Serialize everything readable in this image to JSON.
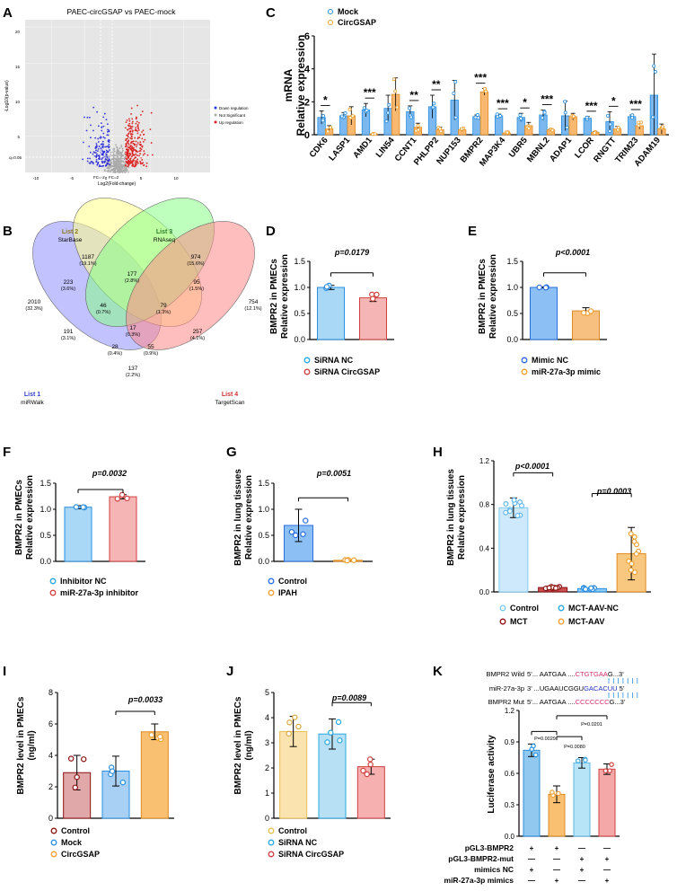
{
  "panels": {
    "A": {
      "letter": "A",
      "title": "PAEC-circGSAP vs PAEC-mock",
      "xlabel": "Log2(Fold-change)",
      "ylabel": "-Log10(p-value)",
      "xticks": [
        "-10",
        "-5",
        "0",
        "5",
        "10"
      ],
      "yticks": [
        "20",
        "15",
        "10",
        "5"
      ],
      "q_label": "q=0.05",
      "fc_left": "FC=-2",
      "fc_right": "FC=2",
      "legend": [
        "Down regulation",
        "Not Significant",
        "Up regulation"
      ],
      "colors": {
        "down": "#3333dd",
        "ns": "#aaaaaa",
        "up": "#dd2222",
        "bg": "#e6e6e6"
      }
    },
    "B": {
      "letter": "B",
      "lists": [
        {
          "name": "List 1",
          "sub": "miRWalk",
          "color": "#2f3fc7"
        },
        {
          "name": "List 2",
          "sub": "StarBase",
          "color": "#8a7a20"
        },
        {
          "name": "List 3",
          "sub": "RNAseq",
          "color": "#2a7a2a"
        },
        {
          "name": "List 4",
          "sub": "TargetScan",
          "color": "#d03030"
        }
      ],
      "fills": {
        "l1": "#9999ff",
        "l2": "#ffff88",
        "l3": "#88ff88",
        "l4": "#ff8888"
      },
      "regions": [
        {
          "n": "1187",
          "p": "(19.1%)"
        },
        {
          "n": "974",
          "p": "(15.6%)"
        },
        {
          "n": "223",
          "p": "(3.6%)"
        },
        {
          "n": "177",
          "p": "(2.8%)"
        },
        {
          "n": "95",
          "p": "(1.5%)"
        },
        {
          "n": "2010",
          "p": "(32.3%)"
        },
        {
          "n": "46",
          "p": "(0.7%)"
        },
        {
          "n": "79",
          "p": "(1.3%)"
        },
        {
          "n": "754",
          "p": "(12.1%)"
        },
        {
          "n": "17",
          "p": "(0.3%)"
        },
        {
          "n": "191",
          "p": "(3.1%)"
        },
        {
          "n": "257",
          "p": "(4.1%)"
        },
        {
          "n": "28",
          "p": "(0.4%)"
        },
        {
          "n": "55",
          "p": "(0.9%)"
        },
        {
          "n": "137",
          "p": "(2.2%)"
        }
      ]
    },
    "C": {
      "letter": "C",
      "ylabel1": "mRNA",
      "ylabel2": "Relative expression",
      "legend": [
        "Mock",
        "CircGSAP"
      ]
    },
    "D": {
      "letter": "D",
      "ylabel1": "BMPR2 in PMECs",
      "ylabel2": "Relative expression",
      "pval": "p=0.0179",
      "legend": [
        "SiRNA NC",
        "SiRNA CircGSAP"
      ]
    },
    "E": {
      "letter": "E",
      "ylabel1": "BMPR2 in PMECs",
      "ylabel2": "Relative expression",
      "pval": "p<0.0001",
      "legend": [
        "Mimic NC",
        "miR-27a-3p mimic"
      ]
    },
    "F": {
      "letter": "F",
      "ylabel1": "BMPR2 in PMECs",
      "ylabel2": "Relative expression",
      "pval": "p=0.0032",
      "legend": [
        "Inhibitor NC",
        "miR-27a-3p inhibitor"
      ]
    },
    "G": {
      "letter": "G",
      "ylabel1": "BMPR2 in lung tissues",
      "ylabel2": "Relative expression",
      "pval": "p=0.0051",
      "legend": [
        "Control",
        "IPAH"
      ]
    },
    "H": {
      "letter": "H",
      "ylabel1": "BMPR2 in lung tissues",
      "ylabel2": "Relative expression",
      "pval1": "p<0.0001",
      "pval2": "p=0.0003",
      "legend": [
        "Control",
        "MCT-AAV-NC",
        "MCT",
        "MCT-AAV"
      ]
    },
    "I": {
      "letter": "I",
      "ylabel1": "BMPR2 level in PMECs",
      "ylabel2": "(ng/ml)",
      "pval": "p=0.0033",
      "legend": [
        "Control",
        "Mock",
        "CircGSAP"
      ]
    },
    "J": {
      "letter": "J",
      "ylabel1": "BMPR2 level in PMECs",
      "ylabel2": "(ng/ml)",
      "pval": "p=0.0089",
      "legend": [
        "Control",
        "SiRNA NC",
        "SiRNA CircGSAP"
      ]
    },
    "K": {
      "letter": "K",
      "seq": [
        {
          "label": "BMPR2 Wild",
          "pre": "5’... AATGAA  ....",
          "hl": "CTGTGAA",
          "post": "G...3’",
          "hlcolor": "#d0306a"
        },
        {
          "label": "miR-27a-3p",
          "pre": "3’ ...UGAAUCGGU",
          "hl": "GACACUU",
          "post": " 5’",
          "hlcolor": "#2030c0"
        },
        {
          "label": "BMPR2 Mut",
          "pre": "5’... AATGAA  ....",
          "hl": "CCCCCCC",
          "post": "G...3’",
          "hlcolor": "#d0306a"
        }
      ],
      "ylabel": "Luciferase activity",
      "pvals": [
        "P=0.0029",
        "P=0.0080",
        "P=0.0201"
      ],
      "rows": [
        {
          "label": "pGL3-BMPR2",
          "marks": [
            "+",
            "+",
            "—",
            "—"
          ]
        },
        {
          "label": "pGL3-BMPR2-mut",
          "marks": [
            "—",
            "—",
            "+",
            "+"
          ]
        },
        {
          "label": "mimics NC",
          "marks": [
            "+",
            "—",
            "+",
            "—"
          ]
        },
        {
          "label": "miR-27a-3p mimics",
          "marks": [
            "—",
            "+",
            "—",
            "+"
          ]
        }
      ]
    }
  },
  "chart_data": [
    {
      "panel": "A",
      "type": "scatter",
      "title": "PAEC-circGSAP vs PAEC-mock",
      "xlabel": "Log2(Fold-change)",
      "ylabel": "-Log10(p-value)",
      "xlim": [
        -14,
        14
      ],
      "ylim": [
        0,
        21
      ],
      "series": [
        {
          "name": "Down regulation"
        },
        {
          "name": "Not Significant"
        },
        {
          "name": "Up regulation"
        }
      ]
    },
    {
      "panel": "C",
      "type": "bar",
      "ylim": [
        0,
        6
      ],
      "yticks": [
        0,
        2,
        4,
        6
      ],
      "categories": [
        "CDK6",
        "LASP1",
        "AMD1",
        "LIN54",
        "CCNT1",
        "PHLPP2",
        "NUP153",
        "BMPR2",
        "MAP3K4",
        "UBR5",
        "MBNL2",
        "ADAP1",
        "LCOR",
        "RNGTT",
        "TRIM23",
        "ADAM19"
      ],
      "series": [
        {
          "name": "Mock",
          "values": [
            1.05,
            1.15,
            1.5,
            1.6,
            1.4,
            1.7,
            2.1,
            1.1,
            1.15,
            1.05,
            1.2,
            1.15,
            1.0,
            0.8,
            1.1,
            2.4
          ],
          "err": [
            0.4,
            0.2,
            0.4,
            0.8,
            0.35,
            0.7,
            1.2,
            0.1,
            0.1,
            0.25,
            0.3,
            0.9,
            0.1,
            0.6,
            0.1,
            2.5
          ]
        },
        {
          "name": "CircGSAP",
          "values": [
            0.35,
            1.15,
            0.05,
            2.45,
            0.45,
            0.3,
            0.3,
            2.6,
            0.1,
            0.55,
            0.3,
            1.1,
            0.15,
            0.35,
            0.55,
            0.35
          ],
          "err": [
            0.2,
            0.55,
            0.02,
            1.0,
            0.25,
            0.15,
            0.1,
            0.2,
            0.05,
            0.2,
            0.05,
            0.2,
            0.05,
            0.15,
            0.2,
            0.3
          ]
        }
      ],
      "significance": [
        "*",
        "",
        "***",
        "",
        "**",
        "**",
        "",
        "***",
        "***",
        "*",
        "***",
        "",
        "***",
        "*",
        "***",
        ""
      ]
    },
    {
      "panel": "D",
      "type": "bar",
      "ylim": [
        0,
        1.5
      ],
      "yticks": [
        "0.0",
        "0.5",
        "1.0",
        "1.5"
      ],
      "categories": [
        "SiRNA NC",
        "SiRNA CircGSAP"
      ],
      "values": [
        1.0,
        0.8
      ],
      "err": [
        0.04,
        0.07
      ]
    },
    {
      "panel": "E",
      "type": "bar",
      "ylim": [
        0,
        1.5
      ],
      "yticks": [
        "0.0",
        "0.5",
        "1.0",
        "1.5"
      ],
      "categories": [
        "Mimic NC",
        "miR-27a-3p mimic"
      ],
      "values": [
        1.0,
        0.55
      ],
      "err": [
        0.01,
        0.06
      ]
    },
    {
      "panel": "F",
      "type": "bar",
      "ylim": [
        0,
        1.5
      ],
      "yticks": [
        "0.0",
        "0.5",
        "1.0",
        "1.5"
      ],
      "categories": [
        "Inhibitor NC",
        "miR-27a-3p inhibitor"
      ],
      "values": [
        1.04,
        1.24
      ],
      "err": [
        0.03,
        0.04
      ]
    },
    {
      "panel": "G",
      "type": "bar",
      "ylim": [
        0,
        1.5
      ],
      "yticks": [
        "0.0",
        "0.5",
        "1.0",
        "1.5"
      ],
      "categories": [
        "Control",
        "IPAH"
      ],
      "values": [
        0.69,
        0.02
      ],
      "err": [
        0.31,
        0.01
      ]
    },
    {
      "panel": "H",
      "type": "bar",
      "ylim": [
        0,
        1.2
      ],
      "yticks": [
        "0.0",
        "0.4",
        "0.8",
        "1.2"
      ],
      "categories": [
        "Control",
        "MCT",
        "MCT-AAV-NC",
        "MCT-AAV"
      ],
      "values": [
        0.77,
        0.04,
        0.03,
        0.35
      ],
      "err": [
        0.09,
        0.01,
        0.01,
        0.24
      ]
    },
    {
      "panel": "I",
      "type": "bar",
      "ylim": [
        0,
        8
      ],
      "yticks": [
        "0",
        "2",
        "4",
        "6",
        "8"
      ],
      "categories": [
        "Control",
        "Mock",
        "CircGSAP"
      ],
      "values": [
        2.9,
        3.0,
        5.5
      ],
      "err": [
        1.1,
        0.95,
        0.5
      ]
    },
    {
      "panel": "J",
      "type": "bar",
      "ylim": [
        0,
        5
      ],
      "yticks": [
        "0",
        "1",
        "2",
        "3",
        "4",
        "5"
      ],
      "categories": [
        "Control",
        "SiRNA NC",
        "SiRNA CircGSAP"
      ],
      "values": [
        3.45,
        3.35,
        2.05
      ],
      "err": [
        0.6,
        0.6,
        0.3
      ]
    },
    {
      "panel": "K",
      "type": "bar",
      "ylim": [
        0,
        1.2
      ],
      "yticks": [
        "0.0",
        "0.3",
        "0.6",
        "0.9",
        "1.2"
      ],
      "categories": [
        "1",
        "2",
        "3",
        "4"
      ],
      "values": [
        0.82,
        0.4,
        0.7,
        0.64
      ],
      "err": [
        0.06,
        0.08,
        0.05,
        0.05
      ]
    }
  ]
}
